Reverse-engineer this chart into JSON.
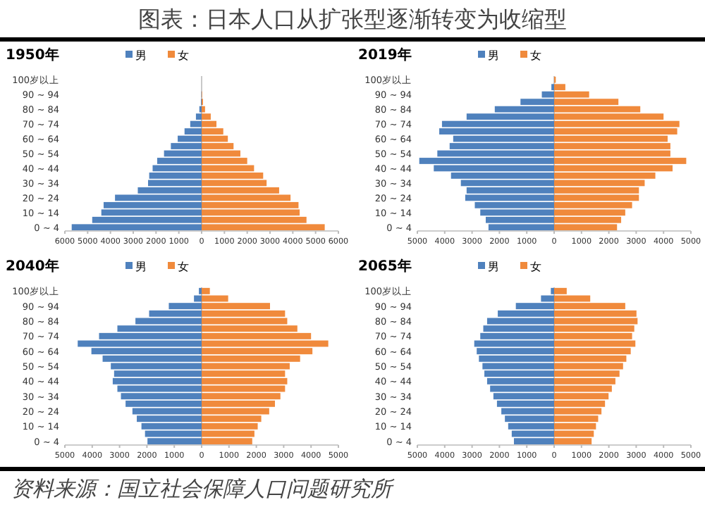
{
  "chart_data": [
    {
      "type": "other",
      "title": "图表：日本人口从扩张型逐渐转变为收缩型",
      "annotations": [
        "资料来源：国立社会保障人口问题研究所"
      ]
    },
    {
      "type": "bar",
      "orientation": "horizontal",
      "stacked": true,
      "title": "1950年",
      "legend": "top",
      "categories": [
        "100岁以上",
        null,
        "90 ~ 94",
        null,
        "80 ~ 84",
        null,
        "70 ~ 74",
        null,
        "60 ~ 64",
        null,
        "50 ~ 54",
        null,
        "40 ~ 44",
        null,
        "30 ~ 34",
        null,
        "20 ~ 24",
        null,
        "10 ~ 14",
        null,
        "0 ~ 4"
      ],
      "xlim": [
        -6000,
        6000
      ],
      "xticks": [
        {
          "value": -6000,
          "label": "6000"
        },
        {
          "value": -5000,
          "label": "5000"
        },
        {
          "value": -4000,
          "label": "4000"
        },
        {
          "value": -3000,
          "label": "3000"
        },
        {
          "value": -2000,
          "label": "2000"
        },
        {
          "value": -1000,
          "label": "1000"
        },
        0,
        1000,
        2000,
        3000,
        4000,
        5000,
        6000
      ],
      "series": [
        {
          "name": "男",
          "color": "#4f81bd",
          "values": [
            0,
            0,
            -10,
            -30,
            -100,
            -250,
            -500,
            -750,
            -1050,
            -1350,
            -1650,
            -1950,
            -2150,
            -2300,
            -2350,
            -2800,
            -3800,
            -4300,
            -4400,
            -4800,
            -5700
          ]
        },
        {
          "name": "女",
          "color": "#f08a3c",
          "values": [
            0,
            0,
            20,
            60,
            150,
            400,
            650,
            950,
            1150,
            1400,
            1700,
            2000,
            2300,
            2700,
            2850,
            3400,
            3900,
            4250,
            4300,
            4600,
            5400
          ]
        }
      ]
    },
    {
      "type": "bar",
      "orientation": "horizontal",
      "stacked": true,
      "title": "2019年",
      "legend": "top",
      "categories": [
        "100岁以上",
        null,
        "90 ~ 94",
        null,
        "80 ~ 84",
        null,
        "70 ~ 74",
        null,
        "60 ~ 64",
        null,
        "50 ~ 54",
        null,
        "40 ~ 44",
        null,
        "30 ~ 34",
        null,
        "20 ~ 24",
        null,
        "10 ~ 14",
        null,
        "0 ~ 4"
      ],
      "xlim": [
        -5000,
        5000
      ],
      "xticks": [
        {
          "value": -5000,
          "label": "5000"
        },
        {
          "value": -4000,
          "label": "4000"
        },
        {
          "value": -3000,
          "label": "3000"
        },
        {
          "value": -2000,
          "label": "2000"
        },
        {
          "value": -1000,
          "label": "1000"
        },
        0,
        1000,
        2000,
        3000,
        4000,
        5000
      ],
      "series": [
        {
          "name": "男",
          "color": "#4f81bd",
          "values": [
            0,
            -100,
            -450,
            -1230,
            -2170,
            -3200,
            -4100,
            -4200,
            -3690,
            -3820,
            -4270,
            -4930,
            -4400,
            -3770,
            -3410,
            -3200,
            -3250,
            -2900,
            -2700,
            -2500,
            -2400
          ]
        },
        {
          "name": "女",
          "color": "#f08a3c",
          "values": [
            60,
            410,
            1280,
            2350,
            3150,
            4000,
            4580,
            4500,
            4150,
            4250,
            4250,
            4830,
            4330,
            3700,
            3310,
            3100,
            3100,
            2850,
            2600,
            2450,
            2300
          ]
        }
      ]
    },
    {
      "type": "bar",
      "orientation": "horizontal",
      "stacked": true,
      "title": "2040年",
      "legend": "top",
      "categories": [
        "100岁以上",
        null,
        "90 ~ 94",
        null,
        "80 ~ 84",
        null,
        "70 ~ 74",
        null,
        "60 ~ 64",
        null,
        "50 ~ 54",
        null,
        "40 ~ 44",
        null,
        "30 ~ 34",
        null,
        "20 ~ 24",
        null,
        "10 ~ 14",
        null,
        "0 ~ 4"
      ],
      "xlim": [
        -5000,
        5000
      ],
      "xticks": [
        {
          "value": -5000,
          "label": "5000"
        },
        {
          "value": -4000,
          "label": "4000"
        },
        {
          "value": -3000,
          "label": "3000"
        },
        {
          "value": -2000,
          "label": "2000"
        },
        {
          "value": -1000,
          "label": "1000"
        },
        0,
        1000,
        2000,
        3000,
        4000,
        5000
      ],
      "series": [
        {
          "name": "男",
          "color": "#4f81bd",
          "values": [
            -100,
            -280,
            -1200,
            -1920,
            -2420,
            -3080,
            -3750,
            -4530,
            -4030,
            -3620,
            -3320,
            -3200,
            -3250,
            -3080,
            -2950,
            -2780,
            -2530,
            -2370,
            -2200,
            -2070,
            -1980
          ]
        },
        {
          "name": "女",
          "color": "#f08a3c",
          "values": [
            300,
            970,
            2500,
            3050,
            3130,
            3500,
            4000,
            4630,
            4050,
            3600,
            3220,
            3050,
            3130,
            3050,
            2880,
            2680,
            2470,
            2180,
            2050,
            1930,
            1850
          ]
        }
      ]
    },
    {
      "type": "bar",
      "orientation": "horizontal",
      "stacked": true,
      "title": "2065年",
      "legend": "top",
      "categories": [
        "100岁以上",
        null,
        "90 ~ 94",
        null,
        "80 ~ 84",
        null,
        "70 ~ 74",
        null,
        "60 ~ 64",
        null,
        "50 ~ 54",
        null,
        "40 ~ 44",
        null,
        "30 ~ 34",
        null,
        "20 ~ 24",
        null,
        "10 ~ 14",
        null,
        "0 ~ 4"
      ],
      "xlim": [
        -5000,
        5000
      ],
      "xticks": [
        {
          "value": -5000,
          "label": "5000"
        },
        {
          "value": -4000,
          "label": "4000"
        },
        {
          "value": -3000,
          "label": "3000"
        },
        {
          "value": -2000,
          "label": "2000"
        },
        {
          "value": -1000,
          "label": "1000"
        },
        0,
        1000,
        2000,
        3000,
        4000,
        5000
      ],
      "series": [
        {
          "name": "男",
          "color": "#4f81bd",
          "values": [
            -120,
            -480,
            -1400,
            -2060,
            -2450,
            -2590,
            -2700,
            -2920,
            -2830,
            -2750,
            -2620,
            -2550,
            -2450,
            -2340,
            -2220,
            -2090,
            -1930,
            -1800,
            -1680,
            -1550,
            -1470
          ]
        },
        {
          "name": "女",
          "color": "#f08a3c",
          "values": [
            460,
            1320,
            2600,
            3010,
            3050,
            2930,
            2850,
            2970,
            2800,
            2640,
            2520,
            2390,
            2240,
            2110,
            1990,
            1860,
            1730,
            1610,
            1530,
            1450,
            1370
          ]
        }
      ]
    }
  ]
}
